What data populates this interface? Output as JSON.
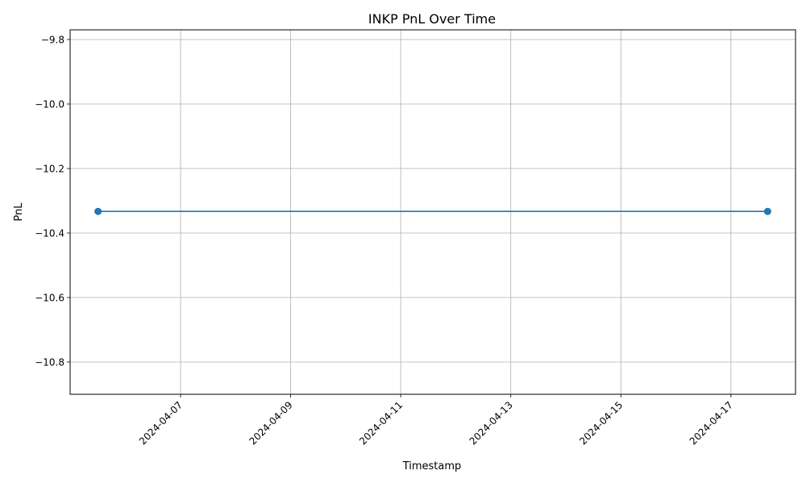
{
  "chart_data": {
    "type": "line",
    "title": "INKP PnL Over Time",
    "xlabel": "Timestamp",
    "ylabel": "PnL",
    "x": [
      "2024-04-05T12:00",
      "2024-04-17T16:00"
    ],
    "series": [
      {
        "values": [
          -10.333,
          -10.333
        ],
        "color": "#1f77b4",
        "marker": "circle"
      }
    ],
    "xlim": [
      "2024-04-04T23:50",
      "2024-04-18T04:10"
    ],
    "ylim": [
      -10.9,
      -9.77
    ],
    "xticks": [
      "2024-04-07",
      "2024-04-09",
      "2024-04-11",
      "2024-04-13",
      "2024-04-15",
      "2024-04-17"
    ],
    "yticks": [
      -9.8,
      -10.0,
      -10.2,
      -10.4,
      -10.6,
      -10.8
    ],
    "yticklabels": [
      "−9.8",
      "−10.0",
      "−10.2",
      "−10.4",
      "−10.6",
      "−10.8"
    ],
    "grid": true,
    "legend": "none"
  }
}
